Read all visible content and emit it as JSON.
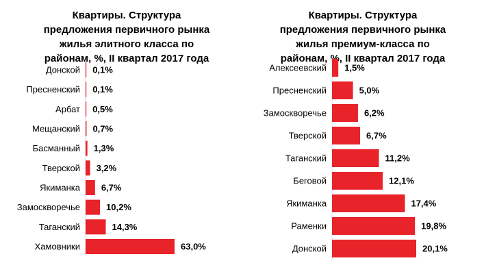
{
  "chart_data": [
    {
      "type": "bar",
      "orientation": "horizontal",
      "title": "Квартиры. Структура\nпредложения первичного рынка\nжилья элитного класса  по\nрайонам, %, II квартал 2017 года",
      "categories": [
        "Донской",
        "Пресненский",
        "Арбат",
        "Мещанский",
        "Басманный",
        "Тверской",
        "Якиманка",
        "Замоскворечье",
        "Таганский",
        "Хамовники"
      ],
      "values": [
        0.1,
        0.1,
        0.5,
        0.7,
        1.3,
        3.2,
        6.7,
        10.2,
        14.3,
        63.0
      ],
      "labels": [
        "0,1%",
        "0,1%",
        "0,5%",
        "0,7%",
        "1,3%",
        "3,2%",
        "6,7%",
        "10,2%",
        "14,3%",
        "63,0%"
      ],
      "color": "#e8232a",
      "xlim": [
        0,
        63.0
      ]
    },
    {
      "type": "bar",
      "orientation": "horizontal",
      "title": "Квартиры. Структура\nпредложения первичного рынка\nжилья премиум-класса  по\nрайонам, %,  II квартал 2017 года",
      "categories": [
        "Алексеевский",
        "Пресненский",
        "Замоскворечье",
        "Тверской",
        "Таганский",
        "Беговой",
        "Якиманка",
        "Раменки",
        "Донской"
      ],
      "values": [
        1.5,
        5.0,
        6.2,
        6.7,
        11.2,
        12.1,
        17.4,
        19.8,
        20.1
      ],
      "labels": [
        "1,5%",
        "5,0%",
        "6,2%",
        "6,7%",
        "11,2%",
        "12,1%",
        "17,4%",
        "19,8%",
        "20,1%"
      ],
      "color": "#e8232a",
      "xlim": [
        0,
        20.1
      ]
    }
  ]
}
